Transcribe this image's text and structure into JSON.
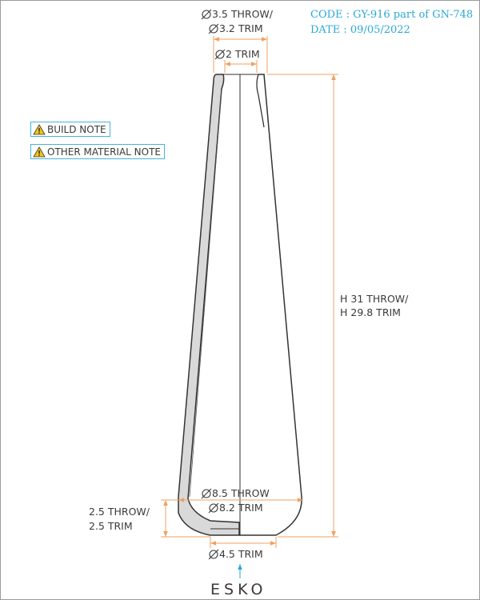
{
  "header": {
    "code": "CODE : GY-916 part of GN-748",
    "date": "DATE : 09/05/2022"
  },
  "notes": [
    {
      "label": "BUILD NOTE",
      "icon": "warning-icon"
    },
    {
      "label": "OTHER MATERIAL NOTE",
      "icon": "warning-icon"
    }
  ],
  "dimensions": {
    "top_outer_line1": "3.5 THROW/",
    "top_outer_line2": "3.2 TRIM",
    "top_inner": "2 TRIM",
    "height_line1": "H 31 THROW/",
    "height_line2": "H 29.8 TRIM",
    "bottom_outer_line1": "8.5 THROW",
    "bottom_outer_line2": "8.2 TRIM",
    "base_line1": "2.5 THROW/",
    "base_line2": "2.5 TRIM",
    "bottom_inner": "4.5 TRIM"
  },
  "brand": "ESKO",
  "colors": {
    "dimension": "#f0a060",
    "accent": "#2aa8d8",
    "wall_fill": "#d9d9d9",
    "outline": "#333333",
    "warning": "#f5c518"
  }
}
